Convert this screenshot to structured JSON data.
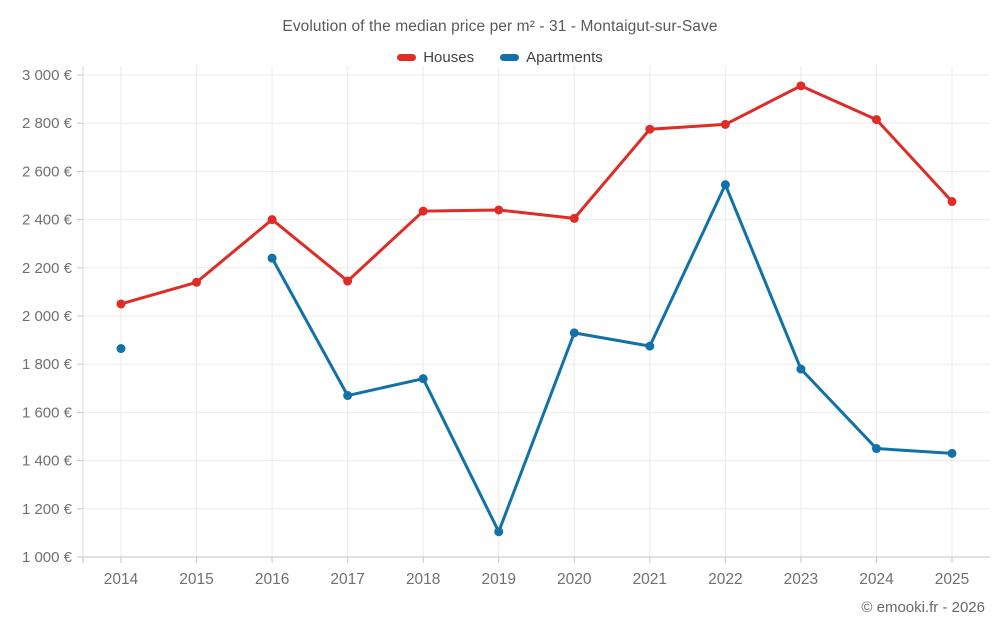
{
  "header": {
    "title": "Evolution of the median price per m² - 31 - Montaigut-sur-Save"
  },
  "chart_data": {
    "type": "line",
    "title": "Evolution of the median price per m² - 31 - Montaigut-sur-Save",
    "categories": [
      "2014",
      "2015",
      "2016",
      "2017",
      "2018",
      "2019",
      "2020",
      "2021",
      "2022",
      "2023",
      "2024",
      "2025"
    ],
    "series": [
      {
        "name": "Houses",
        "color": "#de2c26",
        "values": [
          2050,
          2140,
          2400,
          2145,
          2435,
          2440,
          2405,
          2775,
          2795,
          2955,
          2815,
          2475
        ]
      },
      {
        "name": "Apartments",
        "color": "#1271a7",
        "values": [
          1865,
          null,
          2240,
          1670,
          1740,
          1105,
          1930,
          1875,
          2545,
          1780,
          1450,
          1430
        ]
      }
    ],
    "ylim": [
      1000,
      3000
    ],
    "y_ticks": [
      {
        "value": 3000,
        "label": "3 000 €"
      },
      {
        "value": 2800,
        "label": "2 800 €"
      },
      {
        "value": 2600,
        "label": "2 600 €"
      },
      {
        "value": 2400,
        "label": "2 400 €"
      },
      {
        "value": 2200,
        "label": "2 200 €"
      },
      {
        "value": 2000,
        "label": "2 000 €"
      },
      {
        "value": 1800,
        "label": "1 800 €"
      },
      {
        "value": 1600,
        "label": "1 600 €"
      },
      {
        "value": 1400,
        "label": "1 400 €"
      },
      {
        "value": 1200,
        "label": "1 200 €"
      },
      {
        "value": 1000,
        "label": "1 000 €"
      }
    ],
    "grid": true,
    "legend_position": "top",
    "xlabel": "",
    "ylabel": ""
  },
  "footer": {
    "copyright": "© emooki.fr - 2026"
  }
}
